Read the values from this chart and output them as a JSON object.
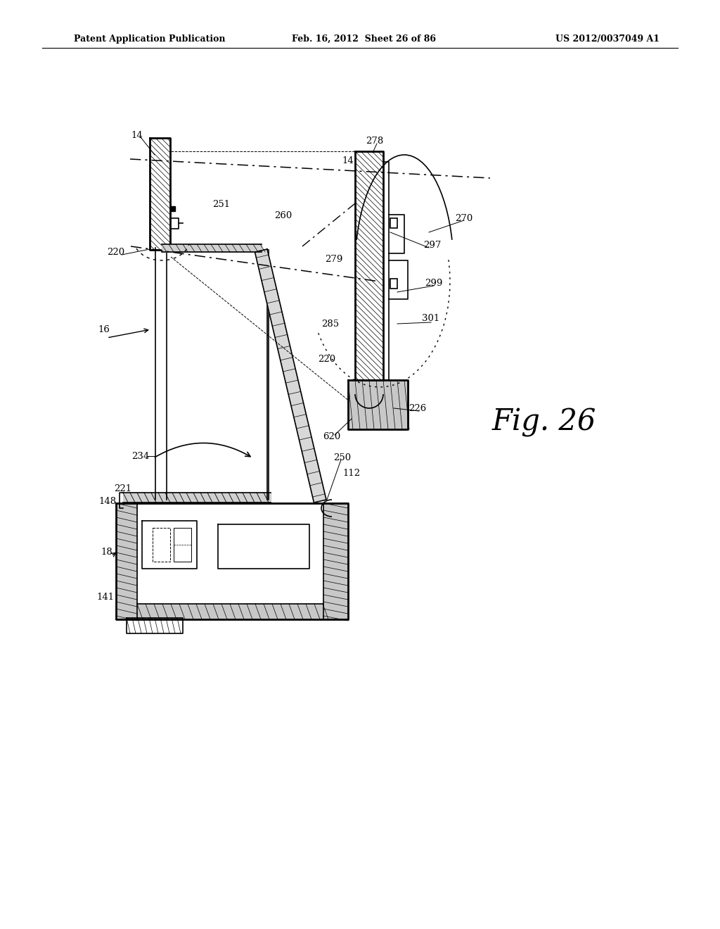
{
  "bg_color": "#ffffff",
  "header_left": "Patent Application Publication",
  "header_center": "Feb. 16, 2012  Sheet 26 of 86",
  "header_right": "US 2012/0037049 A1",
  "fig_label": "Fig. 26",
  "line_color": "#000000",
  "hatch_color": "#000000"
}
